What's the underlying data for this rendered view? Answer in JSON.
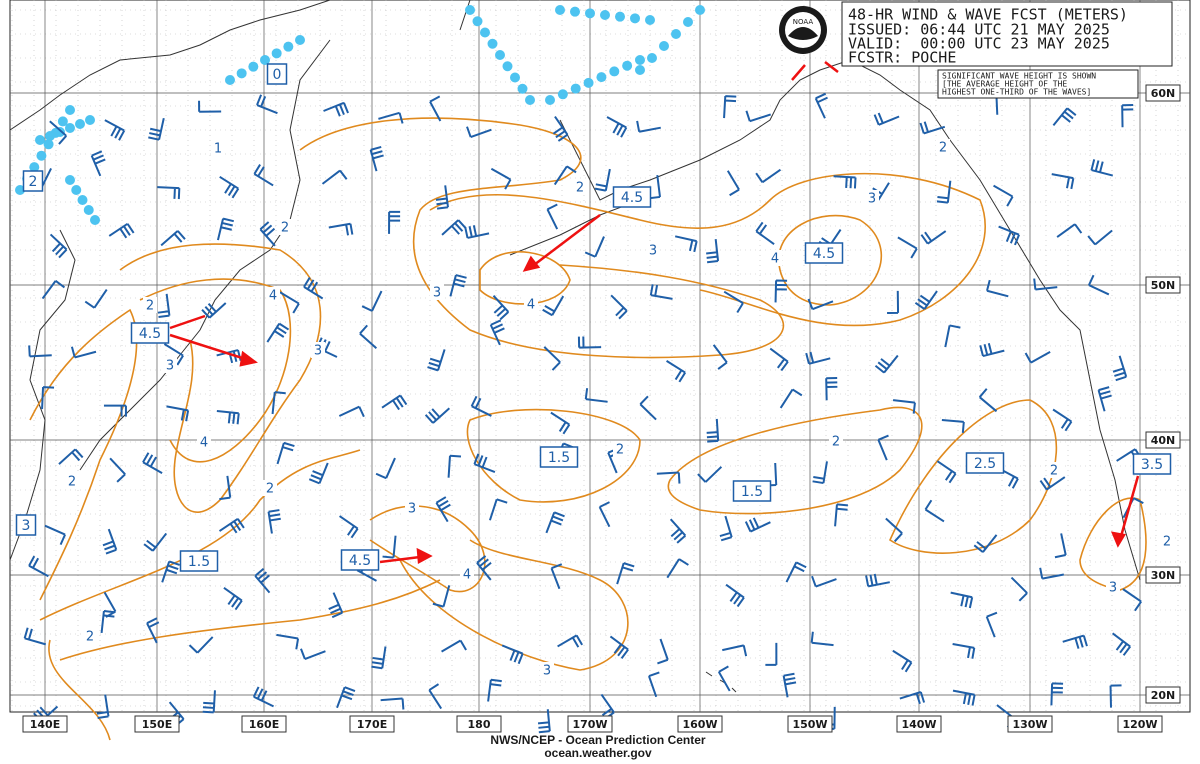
{
  "header": {
    "title": "48-HR WIND & WAVE FCST (METERS)",
    "issued": "ISSUED: 06:44 UTC 21 MAY 2025",
    "valid": "VALID:  00:00 UTC 23 MAY 2025",
    "forecaster": "FCSTR: POCHE"
  },
  "logo": "NOAA",
  "note": [
    "SIGNIFICANT WAVE HEIGHT IS SHOWN",
    "[THE AVERAGE HEIGHT OF THE",
    "HIGHEST ONE-THIRD OF THE WAVES]"
  ],
  "longitude_labels": [
    "140E",
    "150E",
    "160E",
    "170E",
    "180",
    "170W",
    "160W",
    "150W",
    "140W",
    "130W",
    "120W"
  ],
  "latitude_labels": [
    "60N",
    "50N",
    "40N",
    "30N",
    "20N"
  ],
  "contour_labels": [
    "1",
    "2",
    "2",
    "4",
    "3",
    "3",
    "4",
    "2",
    "2",
    "2",
    "3",
    "4",
    "2",
    "3",
    "4",
    "3",
    "2",
    "2",
    "3",
    "4",
    "3",
    "2",
    "2",
    "2",
    "3"
  ],
  "boxed_labels": [
    "0",
    "2",
    "4.5",
    "4.5",
    "4.5",
    "1.5",
    "1.5",
    "2.5",
    "3.5",
    "3",
    "1.5",
    "4.5"
  ],
  "footer": {
    "agency": "NWS/NCEP - Ocean Prediction Center",
    "site": "ocean.weather.gov"
  }
}
